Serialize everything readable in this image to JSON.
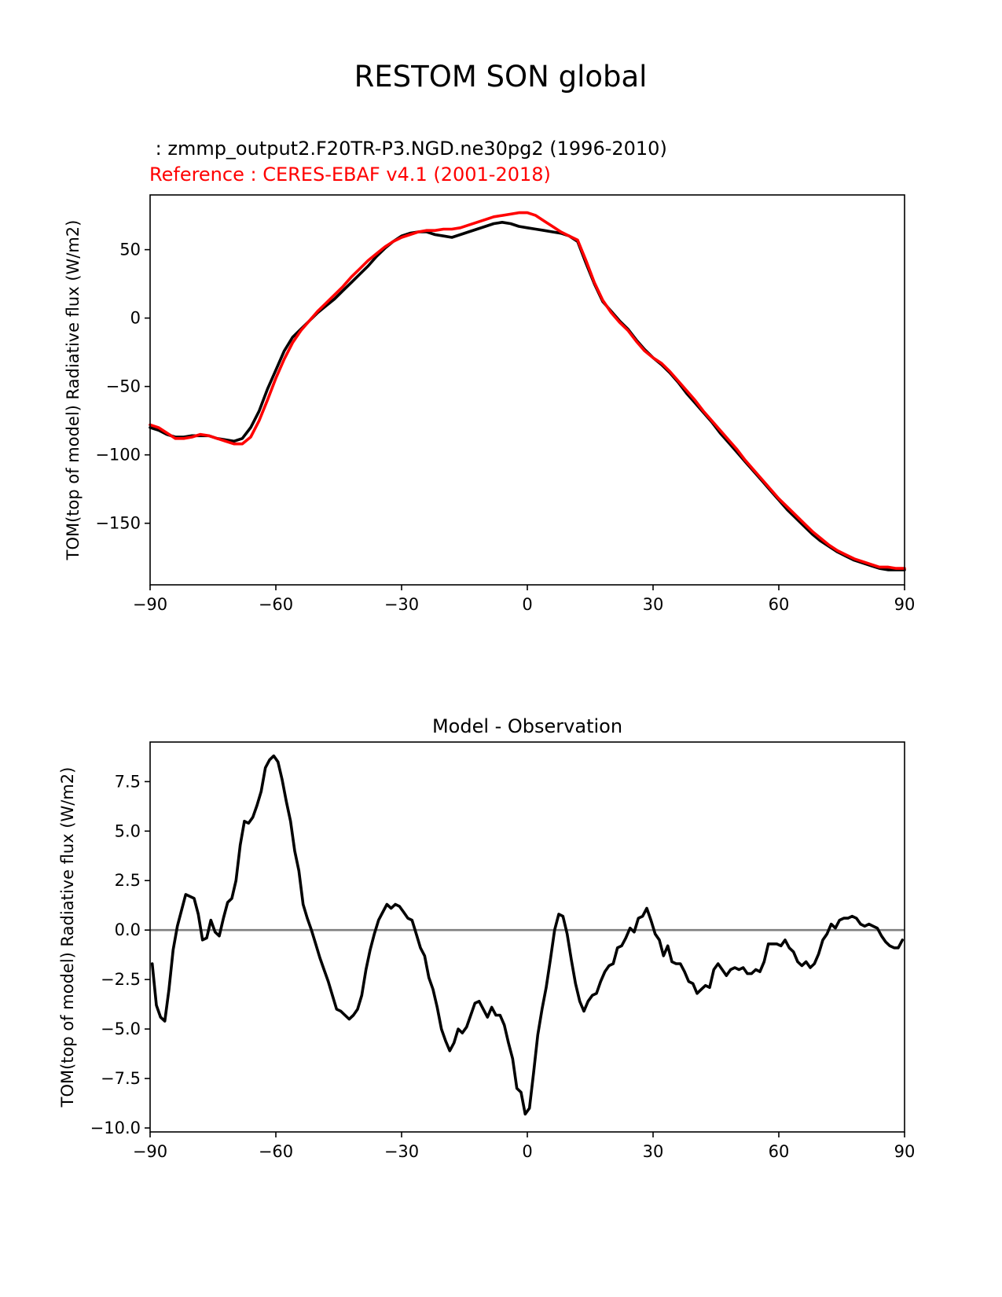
{
  "figure": {
    "title": "RESTOM SON global",
    "test_label": " : zmmp_output2.F20TR-P3.NGD.ne30pg2 (1996-2010)",
    "reference_label": "Reference : CERES-EBAF v4.1 (2001-2018)",
    "colors": {
      "test": "#000000",
      "reference": "#ff0000",
      "zero_line": "#808080"
    }
  },
  "chart_data": [
    {
      "type": "line",
      "title": "",
      "xlabel": "",
      "ylabel": "TOM(top of model) Radiative flux (W/m2)",
      "xlim": [
        -90,
        90
      ],
      "ylim": [
        -195,
        90
      ],
      "xticks": [
        -90,
        -60,
        -30,
        0,
        30,
        60,
        90
      ],
      "xtick_labels": [
        "−90",
        "−60",
        "−30",
        "0",
        "30",
        "60",
        "90"
      ],
      "yticks": [
        -150,
        -100,
        -50,
        0,
        50
      ],
      "ytick_labels": [
        "−150",
        "−100",
        "−50",
        "0",
        "50"
      ],
      "grid": false,
      "series": [
        {
          "role": "test",
          "color": "#000000",
          "x": [
            -90,
            -88,
            -86,
            -84,
            -82,
            -80,
            -78,
            -76,
            -74,
            -72,
            -70,
            -68,
            -66,
            -64,
            -62,
            -60,
            -58,
            -56,
            -54,
            -52,
            -50,
            -48,
            -46,
            -44,
            -42,
            -40,
            -38,
            -36,
            -34,
            -32,
            -30,
            -28,
            -26,
            -24,
            -22,
            -20,
            -18,
            -16,
            -14,
            -12,
            -10,
            -8,
            -6,
            -4,
            -2,
            0,
            2,
            4,
            6,
            8,
            10,
            12,
            14,
            16,
            18,
            20,
            22,
            24,
            26,
            28,
            30,
            32,
            34,
            36,
            38,
            40,
            42,
            44,
            46,
            48,
            50,
            52,
            54,
            56,
            58,
            60,
            62,
            64,
            66,
            68,
            70,
            72,
            74,
            76,
            78,
            80,
            82,
            84,
            86,
            88,
            90
          ],
          "y": [
            -80,
            -82,
            -85,
            -87,
            -87,
            -86,
            -86,
            -86,
            -88,
            -89,
            -90,
            -88,
            -80,
            -68,
            -52,
            -38,
            -24,
            -14,
            -8,
            -2,
            4,
            9,
            14,
            20,
            26,
            32,
            38,
            45,
            51,
            56,
            60,
            62,
            63,
            63,
            61,
            60,
            59,
            61,
            63,
            65,
            67,
            69,
            70,
            69,
            67,
            66,
            65,
            64,
            63,
            62,
            60,
            56,
            40,
            25,
            12,
            5,
            -2,
            -8,
            -16,
            -23,
            -29,
            -34,
            -40,
            -47,
            -55,
            -62,
            -69,
            -76,
            -84,
            -91,
            -98,
            -105,
            -112,
            -119,
            -126,
            -133,
            -140,
            -146,
            -152,
            -158,
            -163,
            -167,
            -171,
            -174,
            -177,
            -179,
            -181,
            -183,
            -184,
            -184,
            -184
          ]
        },
        {
          "role": "reference",
          "color": "#ff0000",
          "x": [
            -90,
            -88,
            -86,
            -84,
            -82,
            -80,
            -78,
            -76,
            -74,
            -72,
            -70,
            -68,
            -66,
            -64,
            -62,
            -60,
            -58,
            -56,
            -54,
            -52,
            -50,
            -48,
            -46,
            -44,
            -42,
            -40,
            -38,
            -36,
            -34,
            -32,
            -30,
            -28,
            -26,
            -24,
            -22,
            -20,
            -18,
            -16,
            -14,
            -12,
            -10,
            -8,
            -6,
            -4,
            -2,
            0,
            2,
            4,
            6,
            8,
            10,
            12,
            14,
            16,
            18,
            20,
            22,
            24,
            26,
            28,
            30,
            32,
            34,
            36,
            38,
            40,
            42,
            44,
            46,
            48,
            50,
            52,
            54,
            56,
            58,
            60,
            62,
            64,
            66,
            68,
            70,
            72,
            74,
            76,
            78,
            80,
            82,
            84,
            86,
            88,
            90
          ],
          "y": [
            -78,
            -80,
            -84,
            -88,
            -88,
            -87,
            -85,
            -86,
            -88,
            -90,
            -92,
            -92,
            -87,
            -75,
            -60,
            -44,
            -30,
            -18,
            -9,
            -2,
            5,
            11,
            17,
            23,
            30,
            36,
            42,
            47,
            52,
            56,
            59,
            61,
            63,
            64,
            64,
            65,
            65,
            66,
            68,
            70,
            72,
            74,
            75,
            76,
            77,
            77,
            75,
            71,
            67,
            63,
            60,
            57,
            42,
            26,
            13,
            4,
            -3,
            -9,
            -17,
            -24,
            -29,
            -33,
            -39,
            -46,
            -53,
            -60,
            -68,
            -75,
            -82,
            -89,
            -96,
            -104,
            -111,
            -118,
            -125,
            -132,
            -138,
            -144,
            -150,
            -156,
            -161,
            -166,
            -170,
            -173,
            -176,
            -178,
            -180,
            -182,
            -182,
            -183,
            -183
          ]
        }
      ]
    },
    {
      "type": "line",
      "title": "Model - Observation",
      "xlabel": "",
      "ylabel": "TOM(top of model) Radiative flux (W/m2)",
      "xlim": [
        -90,
        90
      ],
      "ylim": [
        -10.2,
        9.5
      ],
      "xticks": [
        -90,
        -60,
        -30,
        0,
        30,
        60,
        90
      ],
      "xtick_labels": [
        "−90",
        "−60",
        "−30",
        "0",
        "30",
        "60",
        "90"
      ],
      "yticks": [
        -10.0,
        -7.5,
        -5.0,
        -2.5,
        0.0,
        2.5,
        5.0,
        7.5
      ],
      "ytick_labels": [
        "−10.0",
        "−7.5",
        "−5.0",
        "−2.5",
        "0.0",
        "2.5",
        "5.0",
        "7.5"
      ],
      "grid": false,
      "zero_line": 0,
      "series": [
        {
          "role": "difference",
          "color": "#000000",
          "x": [
            -89.5,
            -88.5,
            -87.5,
            -86.5,
            -85.5,
            -84.5,
            -83.5,
            -82.5,
            -81.5,
            -80.5,
            -79.5,
            -78.5,
            -77.5,
            -76.5,
            -75.5,
            -74.5,
            -73.5,
            -72.5,
            -71.5,
            -70.5,
            -69.5,
            -68.5,
            -67.5,
            -66.5,
            -65.5,
            -64.5,
            -63.5,
            -62.5,
            -61.5,
            -60.5,
            -59.5,
            -58.5,
            -57.5,
            -56.5,
            -55.5,
            -54.5,
            -53.5,
            -52.5,
            -51.5,
            -50.5,
            -49.5,
            -48.5,
            -47.5,
            -46.5,
            -45.5,
            -44.5,
            -43.5,
            -42.5,
            -41.5,
            -40.5,
            -39.5,
            -38.5,
            -37.5,
            -36.5,
            -35.5,
            -34.5,
            -33.5,
            -32.5,
            -31.5,
            -30.5,
            -29.5,
            -28.5,
            -27.5,
            -26.5,
            -25.5,
            -24.5,
            -23.5,
            -22.5,
            -21.5,
            -20.5,
            -19.5,
            -18.5,
            -17.5,
            -16.5,
            -15.5,
            -14.5,
            -13.5,
            -12.5,
            -11.5,
            -10.5,
            -9.5,
            -8.5,
            -7.5,
            -6.5,
            -5.5,
            -4.5,
            -3.5,
            -2.5,
            -1.5,
            -0.5,
            0.5,
            1.5,
            2.5,
            3.5,
            4.5,
            5.5,
            6.5,
            7.5,
            8.5,
            9.5,
            10.5,
            11.5,
            12.5,
            13.5,
            14.5,
            15.5,
            16.5,
            17.5,
            18.5,
            19.5,
            20.5,
            21.5,
            22.5,
            23.5,
            24.5,
            25.5,
            26.5,
            27.5,
            28.5,
            29.5,
            30.5,
            31.5,
            32.5,
            33.5,
            34.5,
            35.5,
            36.5,
            37.5,
            38.5,
            39.5,
            40.5,
            41.5,
            42.5,
            43.5,
            44.5,
            45.5,
            46.5,
            47.5,
            48.5,
            49.5,
            50.5,
            51.5,
            52.5,
            53.5,
            54.5,
            55.5,
            56.5,
            57.5,
            58.5,
            59.5,
            60.5,
            61.5,
            62.5,
            63.5,
            64.5,
            65.5,
            66.5,
            67.5,
            68.5,
            69.5,
            70.5,
            71.5,
            72.5,
            73.5,
            74.5,
            75.5,
            76.5,
            77.5,
            78.5,
            79.5,
            80.5,
            81.5,
            82.5,
            83.5,
            84.5,
            85.5,
            86.5,
            87.5,
            88.5,
            89.5
          ],
          "y": [
            -1.7,
            -3.8,
            -4.4,
            -4.6,
            -3.0,
            -1.0,
            0.2,
            1.0,
            1.8,
            1.7,
            1.6,
            0.8,
            -0.5,
            -0.4,
            0.5,
            -0.1,
            -0.3,
            0.6,
            1.4,
            1.6,
            2.5,
            4.3,
            5.5,
            5.4,
            5.7,
            6.3,
            7.0,
            8.2,
            8.6,
            8.8,
            8.5,
            7.6,
            6.5,
            5.5,
            4.0,
            3.0,
            1.3,
            0.6,
            0.0,
            -0.7,
            -1.4,
            -2.0,
            -2.6,
            -3.3,
            -4.0,
            -4.1,
            -4.3,
            -4.5,
            -4.3,
            -4.0,
            -3.3,
            -2.0,
            -1.0,
            -0.2,
            0.5,
            0.9,
            1.3,
            1.1,
            1.3,
            1.2,
            0.9,
            0.6,
            0.5,
            -0.2,
            -0.9,
            -1.3,
            -2.4,
            -3.0,
            -3.9,
            -5.0,
            -5.6,
            -6.1,
            -5.7,
            -5.0,
            -5.2,
            -4.9,
            -4.3,
            -3.7,
            -3.6,
            -4.0,
            -4.4,
            -3.9,
            -4.3,
            -4.3,
            -4.8,
            -5.7,
            -6.5,
            -8.0,
            -8.2,
            -9.3,
            -9.0,
            -7.2,
            -5.3,
            -4.0,
            -2.9,
            -1.5,
            0.0,
            0.8,
            0.7,
            -0.2,
            -1.5,
            -2.7,
            -3.6,
            -4.1,
            -3.6,
            -3.3,
            -3.2,
            -2.6,
            -2.1,
            -1.8,
            -1.7,
            -0.9,
            -0.8,
            -0.4,
            0.1,
            -0.1,
            0.6,
            0.7,
            1.1,
            0.5,
            -0.2,
            -0.5,
            -1.3,
            -0.8,
            -1.6,
            -1.7,
            -1.7,
            -2.1,
            -2.6,
            -2.7,
            -3.2,
            -3.0,
            -2.8,
            -2.9,
            -2.0,
            -1.7,
            -2.0,
            -2.3,
            -2.0,
            -1.9,
            -2.0,
            -1.9,
            -2.2,
            -2.2,
            -2.0,
            -2.1,
            -1.6,
            -0.7,
            -0.7,
            -0.7,
            -0.8,
            -0.5,
            -0.9,
            -1.1,
            -1.6,
            -1.8,
            -1.6,
            -1.9,
            -1.7,
            -1.2,
            -0.5,
            -0.2,
            0.3,
            0.1,
            0.5,
            0.6,
            0.6,
            0.7,
            0.6,
            0.3,
            0.2,
            0.3,
            0.2,
            0.1,
            -0.3,
            -0.6,
            -0.8,
            -0.9,
            -0.9,
            -0.5
          ]
        }
      ]
    }
  ]
}
